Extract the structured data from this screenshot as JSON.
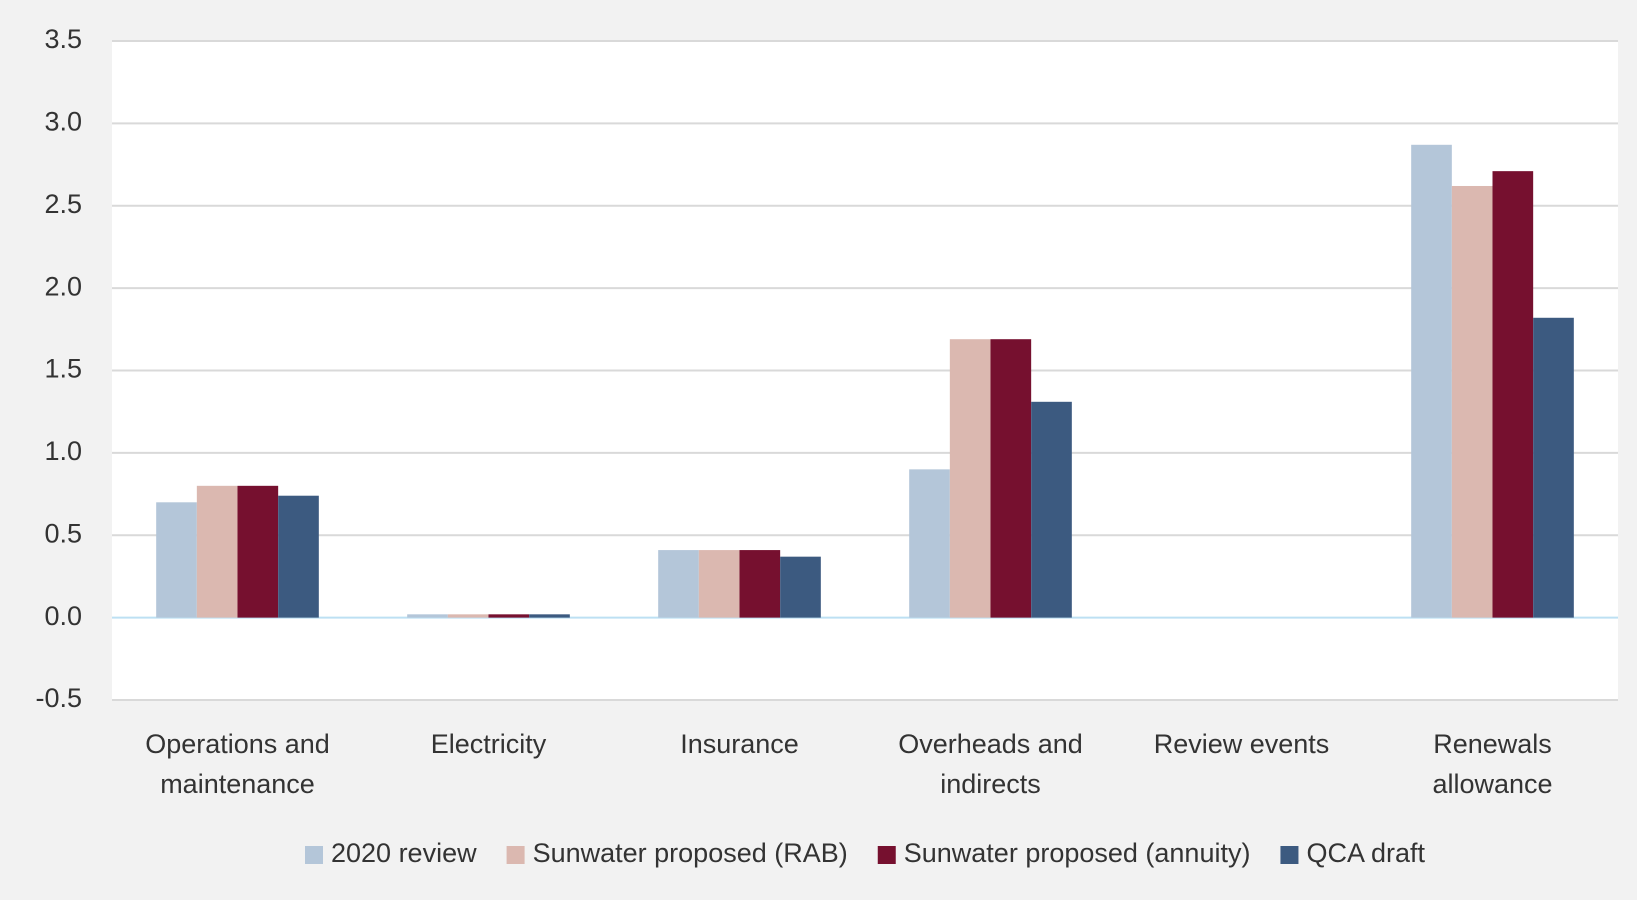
{
  "chart_data": {
    "type": "bar",
    "categories": [
      "Operations and maintenance",
      "Electricity",
      "Insurance",
      "Overheads and indirects",
      "Review events",
      "Renewals allowance"
    ],
    "series": [
      {
        "name": "2020 review",
        "color": "#b4c6d9",
        "values": [
          0.7,
          0.02,
          0.41,
          0.9,
          0,
          2.87
        ]
      },
      {
        "name": "Sunwater proposed (RAB)",
        "color": "#dbb8b0",
        "values": [
          0.8,
          0.02,
          0.41,
          1.69,
          0,
          2.62
        ]
      },
      {
        "name": "Sunwater proposed (annuity)",
        "color": "#76102f",
        "values": [
          0.8,
          0.02,
          0.41,
          1.69,
          0,
          2.71
        ]
      },
      {
        "name": "QCA draft",
        "color": "#3c5a80",
        "values": [
          0.74,
          0.02,
          0.37,
          1.31,
          0,
          1.82
        ]
      }
    ],
    "ylim": [
      -0.5,
      3.5
    ],
    "yticks": [
      -0.5,
      {
        "value": 0,
        "label": "0.0"
      },
      0.5,
      {
        "value": 1,
        "label": "1.0"
      },
      1.5,
      {
        "value": 2,
        "label": "2.0"
      },
      2.5,
      {
        "value": 3,
        "label": "3.0"
      },
      3.5
    ],
    "grid": true,
    "legend": "bottom"
  }
}
